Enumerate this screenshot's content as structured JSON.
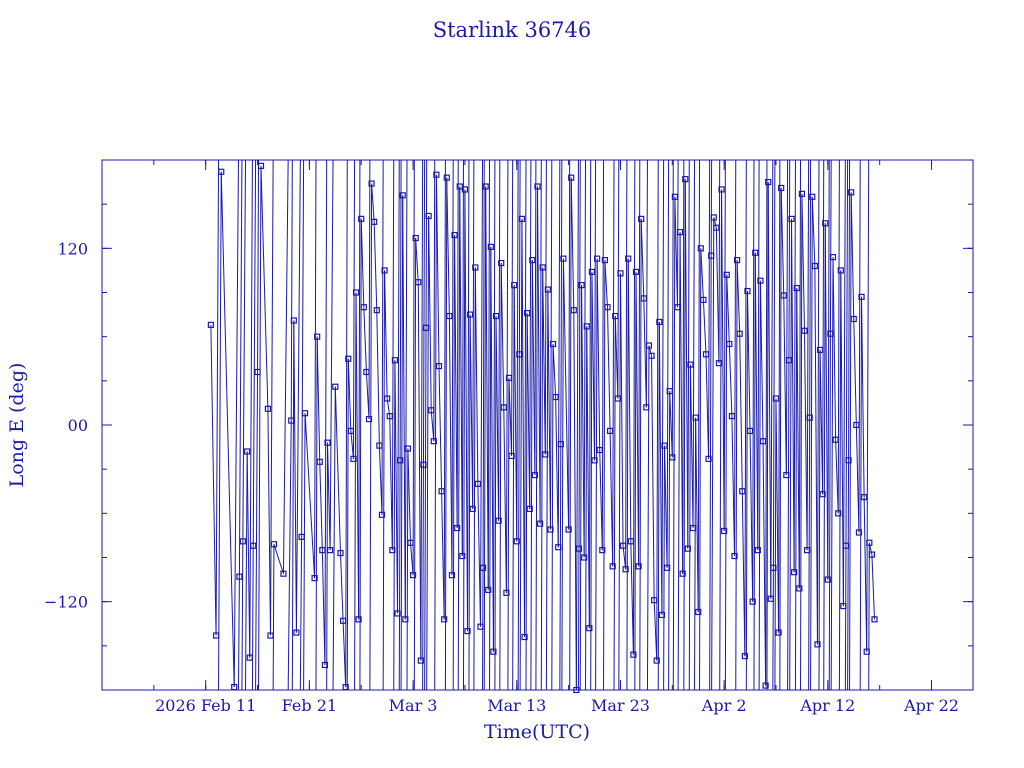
{
  "chart_data": {
    "type": "scatter",
    "title": "Starlink 36746",
    "xlabel": "Time(UTC)",
    "ylabel": "Long E (deg)",
    "xlim": [
      "2026-02-01",
      "2026-04-26"
    ],
    "ylim": [
      -180,
      180
    ],
    "x_ticks": [
      {
        "date": "2026-02-11",
        "label": "2026 Feb 11"
      },
      {
        "date": "2026-02-21",
        "label": "Feb 21"
      },
      {
        "date": "2026-03-03",
        "label": "Mar  3"
      },
      {
        "date": "2026-03-13",
        "label": "Mar 13"
      },
      {
        "date": "2026-03-23",
        "label": "Mar 23"
      },
      {
        "date": "2026-04-02",
        "label": "Apr  2"
      },
      {
        "date": "2026-04-12",
        "label": "Apr 12"
      },
      {
        "date": "2026-04-22",
        "label": "Apr 22"
      }
    ],
    "y_ticks": [
      {
        "value": 120,
        "label": "120"
      },
      {
        "value": 0,
        "label": "00"
      },
      {
        "value": -120,
        "label": "−120"
      }
    ],
    "legend": "none",
    "grid": false,
    "line_color": "#1a1aa6",
    "series": [
      {
        "points": [
          [
            "2026-02-11 12:00",
            68
          ],
          [
            "2026-02-12 00:00",
            -143
          ],
          [
            "2026-02-12 12:00",
            172
          ],
          [
            "2026-02-13 18:00",
            -178
          ],
          [
            "2026-02-14 06:00",
            -103
          ],
          [
            "2026-02-14 14:00",
            -79
          ],
          [
            "2026-02-15 00:00",
            -18
          ],
          [
            "2026-02-15 06:00",
            -158
          ],
          [
            "2026-02-15 14:00",
            -82
          ],
          [
            "2026-02-16 00:00",
            36
          ],
          [
            "2026-02-16 08:00",
            176
          ],
          [
            "2026-02-17 00:00",
            11
          ],
          [
            "2026-02-17 06:00",
            -143
          ],
          [
            "2026-02-17 14:00",
            -81
          ],
          [
            "2026-02-18 12:00",
            -101
          ],
          [
            "2026-02-19 06:00",
            3
          ],
          [
            "2026-02-19 12:00",
            71
          ],
          [
            "2026-02-19 18:00",
            -141
          ],
          [
            "2026-02-20 06:00",
            -76
          ],
          [
            "2026-02-20 14:00",
            8
          ],
          [
            "2026-02-21 12:00",
            -104
          ],
          [
            "2026-02-21 18:00",
            60
          ],
          [
            "2026-02-22 00:00",
            -25
          ],
          [
            "2026-02-22 06:00",
            -85
          ],
          [
            "2026-02-22 12:00",
            -163
          ],
          [
            "2026-02-22 18:00",
            -12
          ],
          [
            "2026-02-23 00:00",
            -85
          ],
          [
            "2026-02-23 12:00",
            26
          ],
          [
            "2026-02-24 00:00",
            -87
          ],
          [
            "2026-02-24 06:00",
            -133
          ],
          [
            "2026-02-24 12:00",
            -178
          ],
          [
            "2026-02-24 18:00",
            45
          ],
          [
            "2026-02-25 00:00",
            -4
          ],
          [
            "2026-02-25 06:00",
            -23
          ],
          [
            "2026-02-25 12:00",
            90
          ],
          [
            "2026-02-25 18:00",
            -132
          ],
          [
            "2026-02-26 00:00",
            140
          ],
          [
            "2026-02-26 06:00",
            80
          ],
          [
            "2026-02-26 12:00",
            36
          ],
          [
            "2026-02-26 18:00",
            4
          ],
          [
            "2026-02-27 00:00",
            164
          ],
          [
            "2026-02-27 06:00",
            138
          ],
          [
            "2026-02-27 12:00",
            78
          ],
          [
            "2026-02-27 18:00",
            -14
          ],
          [
            "2026-02-28 00:00",
            -61
          ],
          [
            "2026-02-28 06:00",
            105
          ],
          [
            "2026-02-28 12:00",
            18
          ],
          [
            "2026-02-28 18:00",
            6
          ],
          [
            "2026-03-01 00:00",
            -85
          ],
          [
            "2026-03-01 06:00",
            44
          ],
          [
            "2026-03-01 12:00",
            -128
          ],
          [
            "2026-03-01 18:00",
            -24
          ],
          [
            "2026-03-02 00:00",
            156
          ],
          [
            "2026-03-02 06:00",
            -132
          ],
          [
            "2026-03-02 12:00",
            -16
          ],
          [
            "2026-03-02 18:00",
            -80
          ],
          [
            "2026-03-03 00:00",
            -102
          ],
          [
            "2026-03-03 06:00",
            127
          ],
          [
            "2026-03-03 12:00",
            97
          ],
          [
            "2026-03-03 18:00",
            -160
          ],
          [
            "2026-03-04 00:00",
            -27
          ],
          [
            "2026-03-04 06:00",
            66
          ],
          [
            "2026-03-04 12:00",
            142
          ],
          [
            "2026-03-04 18:00",
            10
          ],
          [
            "2026-03-05 00:00",
            -11
          ],
          [
            "2026-03-05 06:00",
            170
          ],
          [
            "2026-03-05 12:00",
            40
          ],
          [
            "2026-03-05 18:00",
            -45
          ],
          [
            "2026-03-06 00:00",
            -132
          ],
          [
            "2026-03-06 06:00",
            168
          ],
          [
            "2026-03-06 12:00",
            74
          ],
          [
            "2026-03-06 18:00",
            -102
          ],
          [
            "2026-03-07 00:00",
            129
          ],
          [
            "2026-03-07 06:00",
            -70
          ],
          [
            "2026-03-07 12:00",
            162
          ],
          [
            "2026-03-07 18:00",
            -89
          ],
          [
            "2026-03-08 00:00",
            160
          ],
          [
            "2026-03-08 06:00",
            -140
          ],
          [
            "2026-03-08 12:00",
            75
          ],
          [
            "2026-03-08 18:00",
            -57
          ],
          [
            "2026-03-09 00:00",
            107
          ],
          [
            "2026-03-09 06:00",
            -40
          ],
          [
            "2026-03-09 12:00",
            -137
          ],
          [
            "2026-03-09 18:00",
            -97
          ],
          [
            "2026-03-10 00:00",
            162
          ],
          [
            "2026-03-10 06:00",
            -112
          ],
          [
            "2026-03-10 12:00",
            121
          ],
          [
            "2026-03-10 18:00",
            -154
          ],
          [
            "2026-03-11 00:00",
            74
          ],
          [
            "2026-03-11 06:00",
            -65
          ],
          [
            "2026-03-11 12:00",
            110
          ],
          [
            "2026-03-11 18:00",
            12
          ],
          [
            "2026-03-12 00:00",
            -114
          ],
          [
            "2026-03-12 06:00",
            32
          ],
          [
            "2026-03-12 12:00",
            -21
          ],
          [
            "2026-03-12 18:00",
            95
          ],
          [
            "2026-03-13 00:00",
            -79
          ],
          [
            "2026-03-13 06:00",
            48
          ],
          [
            "2026-03-13 12:00",
            140
          ],
          [
            "2026-03-13 18:00",
            -144
          ],
          [
            "2026-03-14 00:00",
            76
          ],
          [
            "2026-03-14 06:00",
            -57
          ],
          [
            "2026-03-14 12:00",
            112
          ],
          [
            "2026-03-14 18:00",
            -34
          ],
          [
            "2026-03-15 00:00",
            162
          ],
          [
            "2026-03-15 06:00",
            -67
          ],
          [
            "2026-03-15 12:00",
            107
          ],
          [
            "2026-03-15 18:00",
            -20
          ],
          [
            "2026-03-16 00:00",
            92
          ],
          [
            "2026-03-16 06:00",
            -71
          ],
          [
            "2026-03-16 12:00",
            55
          ],
          [
            "2026-03-16 18:00",
            19
          ],
          [
            "2026-03-17 00:00",
            -83
          ],
          [
            "2026-03-17 06:00",
            -13
          ],
          [
            "2026-03-17 12:00",
            113
          ],
          [
            "2026-03-18 00:00",
            -71
          ],
          [
            "2026-03-18 06:00",
            168
          ],
          [
            "2026-03-18 12:00",
            78
          ],
          [
            "2026-03-18 18:00",
            -180
          ],
          [
            "2026-03-19 00:00",
            -84
          ],
          [
            "2026-03-19 06:00",
            95
          ],
          [
            "2026-03-19 12:00",
            -90
          ],
          [
            "2026-03-19 18:00",
            67
          ],
          [
            "2026-03-20 00:00",
            -138
          ],
          [
            "2026-03-20 06:00",
            104
          ],
          [
            "2026-03-20 12:00",
            -24
          ],
          [
            "2026-03-20 18:00",
            113
          ],
          [
            "2026-03-21 00:00",
            -17
          ],
          [
            "2026-03-21 06:00",
            -85
          ],
          [
            "2026-03-21 12:00",
            112
          ],
          [
            "2026-03-21 18:00",
            80
          ],
          [
            "2026-03-22 00:00",
            -4
          ],
          [
            "2026-03-22 06:00",
            -96
          ],
          [
            "2026-03-22 12:00",
            74
          ],
          [
            "2026-03-22 18:00",
            18
          ],
          [
            "2026-03-23 00:00",
            103
          ],
          [
            "2026-03-23 06:00",
            -82
          ],
          [
            "2026-03-23 12:00",
            -98
          ],
          [
            "2026-03-23 18:00",
            113
          ],
          [
            "2026-03-24 00:00",
            -79
          ],
          [
            "2026-03-24 06:00",
            -156
          ],
          [
            "2026-03-24 12:00",
            104
          ],
          [
            "2026-03-24 18:00",
            -96
          ],
          [
            "2026-03-25 00:00",
            140
          ],
          [
            "2026-03-25 06:00",
            86
          ],
          [
            "2026-03-25 12:00",
            12
          ],
          [
            "2026-03-25 18:00",
            54
          ],
          [
            "2026-03-26 00:00",
            47
          ],
          [
            "2026-03-26 06:00",
            -119
          ],
          [
            "2026-03-26 12:00",
            -160
          ],
          [
            "2026-03-26 18:00",
            70
          ],
          [
            "2026-03-27 00:00",
            -129
          ],
          [
            "2026-03-27 06:00",
            -14
          ],
          [
            "2026-03-27 12:00",
            -97
          ],
          [
            "2026-03-27 18:00",
            23
          ],
          [
            "2026-03-28 00:00",
            -22
          ],
          [
            "2026-03-28 06:00",
            155
          ],
          [
            "2026-03-28 12:00",
            80
          ],
          [
            "2026-03-28 18:00",
            131
          ],
          [
            "2026-03-29 00:00",
            -101
          ],
          [
            "2026-03-29 06:00",
            167
          ],
          [
            "2026-03-29 12:00",
            -84
          ],
          [
            "2026-03-29 18:00",
            41
          ],
          [
            "2026-03-30 00:00",
            -70
          ],
          [
            "2026-03-30 06:00",
            5
          ],
          [
            "2026-03-30 12:00",
            -127
          ],
          [
            "2026-03-30 18:00",
            120
          ],
          [
            "2026-03-31 00:00",
            85
          ],
          [
            "2026-03-31 06:00",
            48
          ],
          [
            "2026-03-31 12:00",
            -23
          ],
          [
            "2026-03-31 18:00",
            115
          ],
          [
            "2026-04-01 00:00",
            141
          ],
          [
            "2026-04-01 06:00",
            134
          ],
          [
            "2026-04-01 12:00",
            42
          ],
          [
            "2026-04-01 18:00",
            160
          ],
          [
            "2026-04-02 00:00",
            -72
          ],
          [
            "2026-04-02 06:00",
            102
          ],
          [
            "2026-04-02 12:00",
            55
          ],
          [
            "2026-04-02 18:00",
            6
          ],
          [
            "2026-04-03 00:00",
            -89
          ],
          [
            "2026-04-03 06:00",
            112
          ],
          [
            "2026-04-03 12:00",
            62
          ],
          [
            "2026-04-03 18:00",
            -45
          ],
          [
            "2026-04-04 00:00",
            -157
          ],
          [
            "2026-04-04 06:00",
            91
          ],
          [
            "2026-04-04 12:00",
            -4
          ],
          [
            "2026-04-04 18:00",
            -120
          ],
          [
            "2026-04-05 00:00",
            117
          ],
          [
            "2026-04-05 06:00",
            -85
          ],
          [
            "2026-04-05 12:00",
            98
          ],
          [
            "2026-04-05 18:00",
            -11
          ],
          [
            "2026-04-06 00:00",
            -177
          ],
          [
            "2026-04-06 06:00",
            165
          ],
          [
            "2026-04-06 12:00",
            -118
          ],
          [
            "2026-04-06 18:00",
            -97
          ],
          [
            "2026-04-07 00:00",
            18
          ],
          [
            "2026-04-07 06:00",
            -141
          ],
          [
            "2026-04-07 12:00",
            161
          ],
          [
            "2026-04-07 18:00",
            88
          ],
          [
            "2026-04-08 00:00",
            -34
          ],
          [
            "2026-04-08 06:00",
            44
          ],
          [
            "2026-04-08 12:00",
            140
          ],
          [
            "2026-04-08 18:00",
            -100
          ],
          [
            "2026-04-09 00:00",
            93
          ],
          [
            "2026-04-09 06:00",
            -111
          ],
          [
            "2026-04-09 12:00",
            157
          ],
          [
            "2026-04-09 18:00",
            64
          ],
          [
            "2026-04-10 00:00",
            -85
          ],
          [
            "2026-04-10 06:00",
            5
          ],
          [
            "2026-04-10 12:00",
            155
          ],
          [
            "2026-04-10 18:00",
            108
          ],
          [
            "2026-04-11 00:00",
            -149
          ],
          [
            "2026-04-11 06:00",
            51
          ],
          [
            "2026-04-11 12:00",
            -47
          ],
          [
            "2026-04-11 18:00",
            137
          ],
          [
            "2026-04-12 00:00",
            -105
          ],
          [
            "2026-04-12 06:00",
            62
          ],
          [
            "2026-04-12 12:00",
            114
          ],
          [
            "2026-04-12 18:00",
            -10
          ],
          [
            "2026-04-13 00:00",
            -60
          ],
          [
            "2026-04-13 06:00",
            105
          ],
          [
            "2026-04-13 12:00",
            -123
          ],
          [
            "2026-04-13 18:00",
            -82
          ],
          [
            "2026-04-14 00:00",
            -24
          ],
          [
            "2026-04-14 06:00",
            158
          ],
          [
            "2026-04-14 12:00",
            72
          ],
          [
            "2026-04-14 18:00",
            0
          ],
          [
            "2026-04-15 00:00",
            -73
          ],
          [
            "2026-04-15 06:00",
            87
          ],
          [
            "2026-04-15 12:00",
            -49
          ],
          [
            "2026-04-15 18:00",
            -154
          ],
          [
            "2026-04-16 00:00",
            -80
          ],
          [
            "2026-04-16 06:00",
            -88
          ],
          [
            "2026-04-16 12:00",
            -132
          ]
        ]
      }
    ]
  }
}
